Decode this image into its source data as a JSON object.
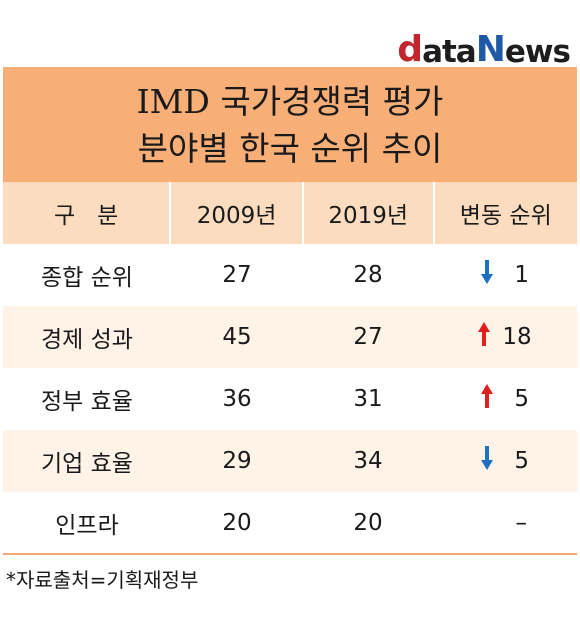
{
  "logo": {
    "d": "d",
    "ata": "ata",
    "n": "N",
    "ews": "ews"
  },
  "title": {
    "line1": "IMD 국가경쟁력 평가",
    "line2": "분야별 한국 순위 추이"
  },
  "headers": [
    "구   분",
    "2009년",
    "2019년",
    "변동 순위"
  ],
  "rows": [
    {
      "category": "종합 순위",
      "y2009": "27",
      "y2019": "28",
      "direction": "down",
      "change": "1"
    },
    {
      "category": "경제 성과",
      "y2009": "45",
      "y2019": "27",
      "direction": "up",
      "change": "18"
    },
    {
      "category": "정부 효율",
      "y2009": "36",
      "y2019": "31",
      "direction": "up",
      "change": "5"
    },
    {
      "category": "기업 효율",
      "y2009": "29",
      "y2019": "34",
      "direction": "down",
      "change": "5"
    },
    {
      "category": "인프라",
      "y2009": "20",
      "y2019": "20",
      "direction": "none",
      "change": "–"
    }
  ],
  "source": "*자료출처=기획재정부",
  "colors": {
    "up": "#e0201c",
    "down": "#1f6fc4",
    "header": "#f8ae77",
    "subheader": "#fcdcbf",
    "stripe": "#fff2e6"
  }
}
